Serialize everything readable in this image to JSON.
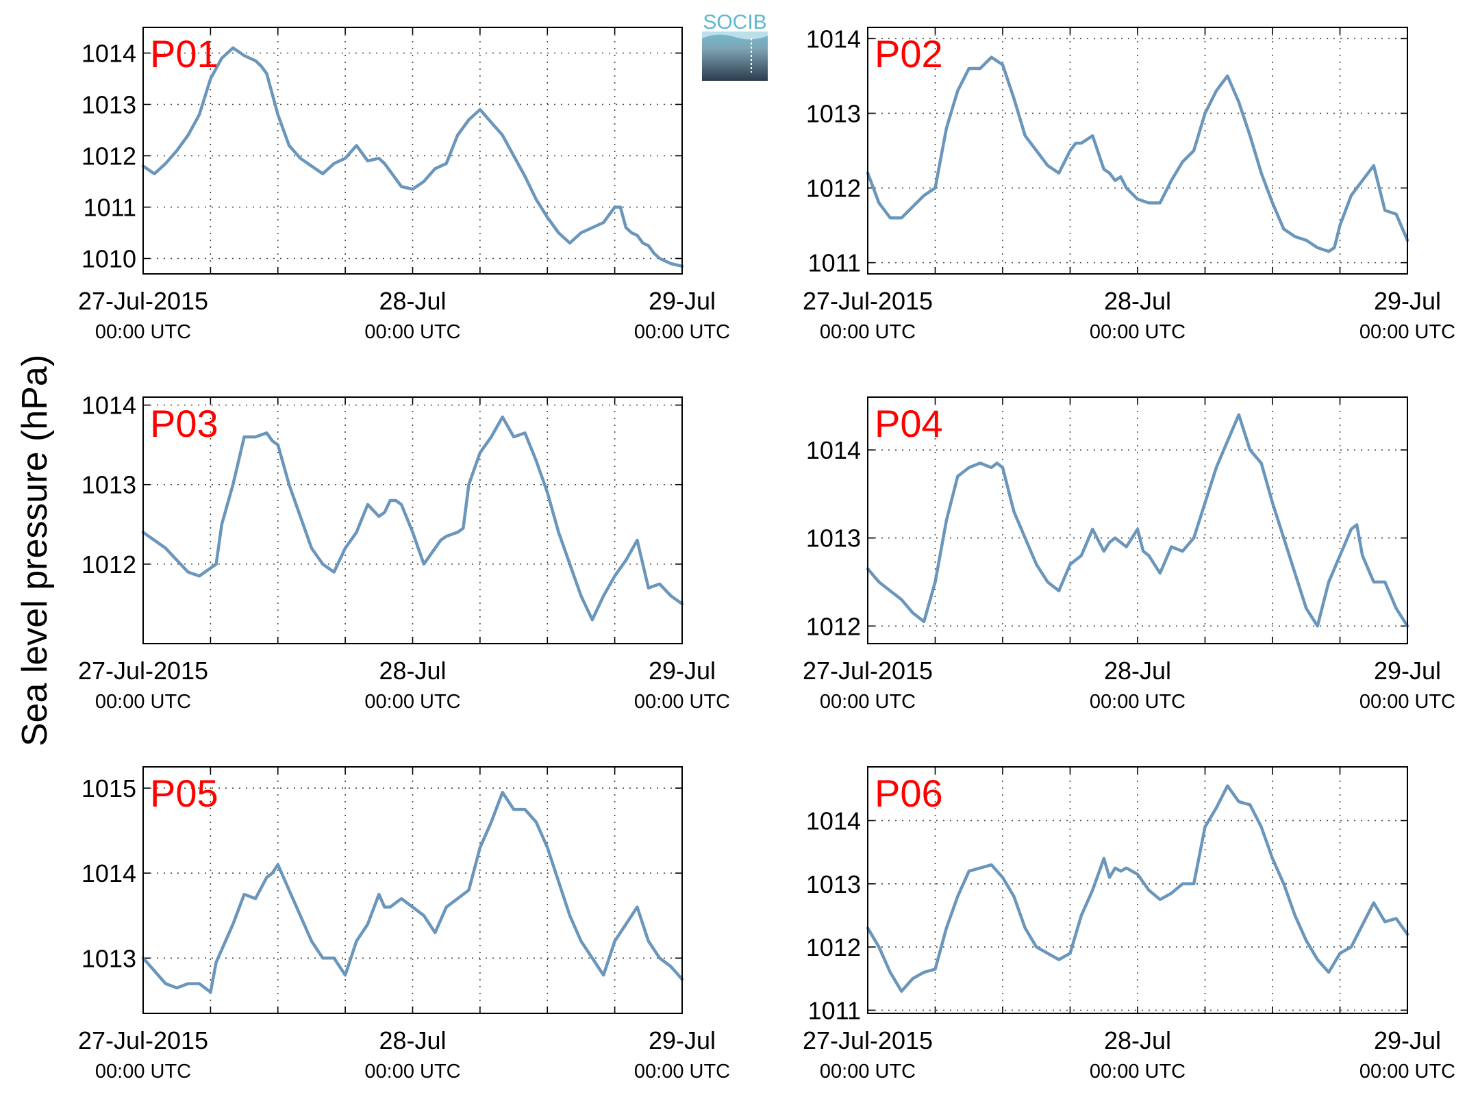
{
  "figure": {
    "ylabel": "Sea level pressure (hPa)",
    "logo_text": "SOCIB"
  },
  "colors": {
    "series": "#6a96bc",
    "panel_label": "#ff0000",
    "axis": "#000000",
    "grid": "#444444"
  },
  "chart_data": [
    {
      "type": "line",
      "name": "P01",
      "x_ticks": [
        {
          "line1": "27-Jul-2015",
          "line2": "00:00 UTC"
        },
        {
          "line1": "28-Jul",
          "line2": "00:00 UTC"
        },
        {
          "line1": "29-Jul",
          "line2": "00:00 UTC"
        }
      ],
      "x_range_hours": [
        0,
        48
      ],
      "x_grid_step_hours": 6,
      "ylim": [
        1009.7,
        1014.5
      ],
      "yticks": [
        1010,
        1011,
        1012,
        1013,
        1014
      ],
      "series": [
        {
          "x": [
            0,
            1,
            2,
            3,
            4,
            5,
            6,
            7,
            8,
            9,
            9.5,
            10,
            10.5,
            11,
            11.5,
            12,
            13,
            14,
            15,
            16,
            17,
            18,
            19,
            20,
            21,
            21.5,
            22,
            23,
            24,
            25,
            26,
            27,
            28,
            29,
            30,
            31,
            32,
            33,
            34,
            35,
            36,
            37,
            38,
            39,
            40,
            41,
            42,
            42.5,
            43,
            43.5,
            44,
            44.5,
            45,
            45.5,
            46,
            47,
            48
          ],
          "y": [
            1011.8,
            1011.65,
            1011.85,
            1012.1,
            1012.4,
            1012.8,
            1013.5,
            1013.9,
            1014.1,
            1013.95,
            1013.9,
            1013.85,
            1013.75,
            1013.6,
            1013.2,
            1012.8,
            1012.2,
            1011.95,
            1011.8,
            1011.65,
            1011.85,
            1011.95,
            1012.2,
            1011.9,
            1011.95,
            1011.85,
            1011.7,
            1011.4,
            1011.35,
            1011.5,
            1011.75,
            1011.85,
            1012.4,
            1012.7,
            1012.9,
            1012.65,
            1012.4,
            1012.0,
            1011.6,
            1011.15,
            1010.8,
            1010.5,
            1010.3,
            1010.5,
            1010.6,
            1010.7,
            1011.0,
            1011.0,
            1010.6,
            1010.5,
            1010.45,
            1010.3,
            1010.25,
            1010.1,
            1010.0,
            1009.9,
            1009.85
          ]
        }
      ]
    },
    {
      "type": "line",
      "name": "P02",
      "x_ticks": [
        {
          "line1": "27-Jul-2015",
          "line2": "00:00 UTC"
        },
        {
          "line1": "28-Jul",
          "line2": "00:00 UTC"
        },
        {
          "line1": "29-Jul",
          "line2": "00:00 UTC"
        }
      ],
      "x_range_hours": [
        0,
        48
      ],
      "x_grid_step_hours": 6,
      "ylim": [
        1010.85,
        1014.15
      ],
      "yticks": [
        1011,
        1012,
        1013,
        1014
      ],
      "series": [
        {
          "x": [
            0,
            1,
            2,
            3,
            4,
            5,
            6,
            7,
            8,
            9,
            10,
            11,
            11.5,
            12,
            13,
            14,
            15,
            16,
            17,
            18,
            18.5,
            19,
            20,
            21,
            21.5,
            22,
            22.5,
            23,
            24,
            25,
            26,
            27,
            28,
            29,
            30,
            31,
            32,
            33,
            34,
            35,
            36,
            37,
            38,
            39,
            40,
            41,
            41.5,
            42,
            43,
            44,
            45,
            46,
            47,
            48
          ],
          "y": [
            1012.2,
            1011.8,
            1011.6,
            1011.6,
            1011.75,
            1011.9,
            1012.0,
            1012.8,
            1013.3,
            1013.6,
            1013.6,
            1013.75,
            1013.7,
            1013.65,
            1013.2,
            1012.7,
            1012.5,
            1012.3,
            1012.2,
            1012.5,
            1012.6,
            1012.6,
            1012.7,
            1012.25,
            1012.2,
            1012.1,
            1012.15,
            1012.0,
            1011.85,
            1011.8,
            1011.8,
            1012.1,
            1012.35,
            1012.5,
            1013.0,
            1013.3,
            1013.5,
            1013.15,
            1012.7,
            1012.2,
            1011.8,
            1011.45,
            1011.35,
            1011.3,
            1011.2,
            1011.15,
            1011.2,
            1011.5,
            1011.9,
            1012.1,
            1012.3,
            1011.7,
            1011.65,
            1011.3
          ]
        }
      ]
    },
    {
      "type": "line",
      "name": "P03",
      "x_ticks": [
        {
          "line1": "27-Jul-2015",
          "line2": "00:00 UTC"
        },
        {
          "line1": "28-Jul",
          "line2": "00:00 UTC"
        },
        {
          "line1": "29-Jul",
          "line2": "00:00 UTC"
        }
      ],
      "x_range_hours": [
        0,
        48
      ],
      "x_grid_step_hours": 6,
      "ylim": [
        1011.0,
        1014.1
      ],
      "yticks": [
        1012,
        1013,
        1014
      ],
      "series": [
        {
          "x": [
            0,
            1,
            2,
            3,
            4,
            5,
            6,
            6.5,
            7,
            8,
            9,
            10,
            11,
            11.5,
            12,
            13,
            14,
            15,
            16,
            17,
            18,
            19,
            20,
            21,
            21.5,
            22,
            22.5,
            23,
            24,
            25,
            26,
            26.5,
            27,
            28,
            28.5,
            29,
            30,
            31,
            32,
            33,
            34,
            35,
            36,
            37,
            38,
            39,
            40,
            41,
            42,
            43,
            44,
            45,
            46,
            47,
            48
          ],
          "y": [
            1012.4,
            1012.3,
            1012.2,
            1012.05,
            1011.9,
            1011.85,
            1011.95,
            1012.0,
            1012.5,
            1013.0,
            1013.6,
            1013.6,
            1013.65,
            1013.55,
            1013.5,
            1013.0,
            1012.6,
            1012.2,
            1012.0,
            1011.9,
            1012.2,
            1012.4,
            1012.75,
            1012.6,
            1012.65,
            1012.8,
            1012.8,
            1012.75,
            1012.4,
            1012.0,
            1012.2,
            1012.3,
            1012.35,
            1012.4,
            1012.45,
            1013.0,
            1013.4,
            1013.6,
            1013.85,
            1013.6,
            1013.65,
            1013.3,
            1012.9,
            1012.4,
            1012.0,
            1011.6,
            1011.3,
            1011.6,
            1011.85,
            1012.05,
            1012.3,
            1011.7,
            1011.75,
            1011.6,
            1011.5
          ]
        }
      ]
    },
    {
      "type": "line",
      "name": "P04",
      "x_ticks": [
        {
          "line1": "27-Jul-2015",
          "line2": "00:00 UTC"
        },
        {
          "line1": "28-Jul",
          "line2": "00:00 UTC"
        },
        {
          "line1": "29-Jul",
          "line2": "00:00 UTC"
        }
      ],
      "x_range_hours": [
        0,
        48
      ],
      "x_grid_step_hours": 6,
      "ylim": [
        1011.8,
        1014.6
      ],
      "yticks": [
        1012,
        1013,
        1014
      ],
      "series": [
        {
          "x": [
            0,
            1,
            2,
            3,
            4,
            5,
            6,
            7,
            8,
            9,
            10,
            11,
            11.5,
            12,
            13,
            14,
            15,
            16,
            17,
            18,
            19,
            20,
            21,
            21.5,
            22,
            23,
            24,
            24.5,
            25,
            26,
            27,
            28,
            29,
            30,
            31,
            32,
            33,
            34,
            35,
            36,
            37,
            38,
            39,
            40,
            41,
            42,
            43,
            43.5,
            44,
            45,
            46,
            47,
            48
          ],
          "y": [
            1012.65,
            1012.5,
            1012.4,
            1012.3,
            1012.15,
            1012.05,
            1012.5,
            1013.2,
            1013.7,
            1013.8,
            1013.85,
            1013.8,
            1013.85,
            1013.8,
            1013.3,
            1013.0,
            1012.7,
            1012.5,
            1012.4,
            1012.7,
            1012.8,
            1013.1,
            1012.85,
            1012.95,
            1013.0,
            1012.9,
            1013.1,
            1012.85,
            1012.8,
            1012.6,
            1012.9,
            1012.85,
            1013.0,
            1013.4,
            1013.8,
            1014.1,
            1014.4,
            1014.0,
            1013.85,
            1013.4,
            1013.0,
            1012.6,
            1012.2,
            1012.0,
            1012.5,
            1012.8,
            1013.1,
            1013.15,
            1012.8,
            1012.5,
            1012.5,
            1012.2,
            1012.0
          ]
        }
      ]
    },
    {
      "type": "line",
      "name": "P05",
      "x_ticks": [
        {
          "line1": "27-Jul-2015",
          "line2": "00:00 UTC"
        },
        {
          "line1": "28-Jul",
          "line2": "00:00 UTC"
        },
        {
          "line1": "29-Jul",
          "line2": "00:00 UTC"
        }
      ],
      "x_range_hours": [
        0,
        48
      ],
      "x_grid_step_hours": 6,
      "ylim": [
        1012.35,
        1015.25
      ],
      "yticks": [
        1013,
        1014,
        1015
      ],
      "series": [
        {
          "x": [
            0,
            1,
            2,
            3,
            4,
            5,
            6,
            6.5,
            7,
            8,
            9,
            10,
            11,
            11.5,
            12,
            13,
            14,
            15,
            16,
            17,
            18,
            19,
            20,
            21,
            21.5,
            22,
            22.5,
            23,
            24,
            25,
            26,
            27,
            28,
            29,
            30,
            31,
            32,
            33,
            34,
            35,
            36,
            37,
            38,
            39,
            40,
            41,
            42,
            43,
            44,
            45,
            46,
            47,
            48
          ],
          "y": [
            1013.0,
            1012.85,
            1012.7,
            1012.65,
            1012.7,
            1012.7,
            1012.6,
            1012.95,
            1013.1,
            1013.4,
            1013.75,
            1013.7,
            1013.95,
            1014.0,
            1014.1,
            1013.8,
            1013.5,
            1013.2,
            1013.0,
            1013.0,
            1012.8,
            1013.2,
            1013.4,
            1013.75,
            1013.6,
            1013.6,
            1013.65,
            1013.7,
            1013.6,
            1013.5,
            1013.3,
            1013.6,
            1013.7,
            1013.8,
            1014.3,
            1014.6,
            1014.95,
            1014.75,
            1014.75,
            1014.6,
            1014.3,
            1013.9,
            1013.5,
            1013.2,
            1013.0,
            1012.8,
            1013.2,
            1013.4,
            1013.6,
            1013.2,
            1013.0,
            1012.9,
            1012.75
          ]
        }
      ]
    },
    {
      "type": "line",
      "name": "P06",
      "x_ticks": [
        {
          "line1": "27-Jul-2015",
          "line2": "00:00 UTC"
        },
        {
          "line1": "28-Jul",
          "line2": "00:00 UTC"
        },
        {
          "line1": "29-Jul",
          "line2": "00:00 UTC"
        }
      ],
      "x_range_hours": [
        0,
        48
      ],
      "x_grid_step_hours": 6,
      "ylim": [
        1010.95,
        1014.85
      ],
      "yticks": [
        1011,
        1012,
        1013,
        1014
      ],
      "series": [
        {
          "x": [
            0,
            1,
            2,
            3,
            4,
            5,
            6,
            7,
            8,
            9,
            10,
            11,
            12,
            13,
            14,
            15,
            16,
            17,
            18,
            19,
            20,
            21,
            21.5,
            22,
            22.5,
            23,
            24,
            25,
            26,
            27,
            28,
            29,
            30,
            31,
            32,
            33,
            34,
            35,
            36,
            37,
            38,
            39,
            40,
            41,
            42,
            43,
            44,
            45,
            46,
            47,
            48
          ],
          "y": [
            1012.3,
            1012.0,
            1011.6,
            1011.3,
            1011.5,
            1011.6,
            1011.65,
            1012.3,
            1012.8,
            1013.2,
            1013.25,
            1013.3,
            1013.1,
            1012.8,
            1012.3,
            1012.0,
            1011.9,
            1011.8,
            1011.9,
            1012.5,
            1012.9,
            1013.4,
            1013.1,
            1013.25,
            1013.2,
            1013.25,
            1013.15,
            1012.9,
            1012.75,
            1012.85,
            1013.0,
            1013.0,
            1013.9,
            1014.2,
            1014.55,
            1014.3,
            1014.25,
            1013.9,
            1013.4,
            1013.0,
            1012.5,
            1012.1,
            1011.8,
            1011.6,
            1011.9,
            1012.0,
            1012.35,
            1012.7,
            1012.4,
            1012.45,
            1012.2
          ]
        }
      ]
    }
  ]
}
